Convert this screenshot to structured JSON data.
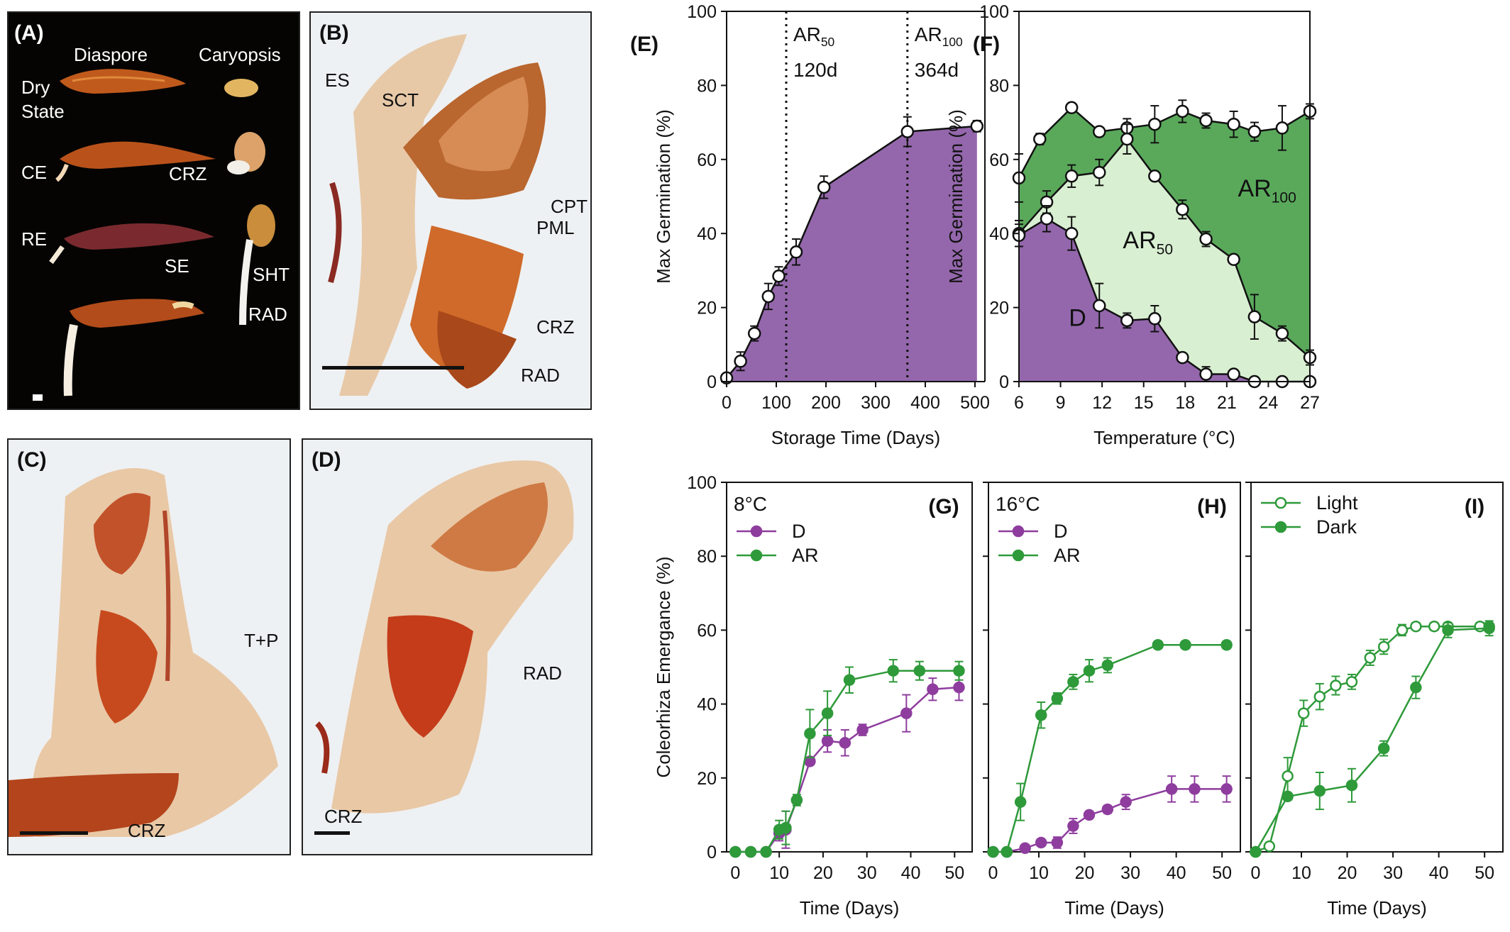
{
  "photo_panels": {
    "A": {
      "label": "(A)",
      "col_headers": [
        "Diaspore",
        "Caryopsis"
      ],
      "state_label_line1": "Dry",
      "state_label_line2": "State",
      "markers": [
        "CE",
        "CRZ",
        "RE",
        "SE",
        "SHT",
        "RAD"
      ]
    },
    "B": {
      "label": "(B)",
      "markers": [
        "ES",
        "SCT",
        "CPT",
        "PML",
        "CRZ",
        "RAD"
      ]
    },
    "C": {
      "label": "(C)",
      "markers": [
        "T+P",
        "CRZ"
      ]
    },
    "D": {
      "label": "(D)",
      "markers": [
        "RAD",
        "CRZ"
      ]
    }
  },
  "colors": {
    "purple_fill": "#9467ac",
    "dark_green_fill": "#5aa95b",
    "light_green_fill": "#d9efd2",
    "purple_line": "#8e3d9e",
    "green_line": "#2e9a3a"
  },
  "chart_data": [
    {
      "panel": "(E)",
      "type": "area",
      "xlabel": "Storage Time (Days)",
      "ylabel": "Max Germination (%)",
      "xlim": [
        0,
        520
      ],
      "ylim": [
        0,
        100
      ],
      "xticks": [
        "0",
        "100",
        "200",
        "300",
        "400",
        "500"
      ],
      "yticks": [
        "0",
        "20",
        "40",
        "60",
        "80",
        "100"
      ],
      "vlines": [
        {
          "x": 120,
          "label_main": "AR",
          "label_sub": "50",
          "label_value": "120d"
        },
        {
          "x": 364,
          "label_main": "AR",
          "label_sub": "100",
          "label_value": "364d"
        }
      ],
      "series": [
        {
          "x": [
            0,
            28,
            56,
            84,
            105,
            140,
            196,
            364,
            504
          ],
          "y": [
            1,
            5.5,
            13,
            23,
            28.5,
            35,
            52.5,
            67.5,
            69
          ],
          "err": [
            1,
            2.5,
            2,
            3.5,
            2.5,
            3.5,
            3,
            4,
            1.5
          ]
        }
      ]
    },
    {
      "panel": "(F)",
      "type": "area",
      "xlabel": "Temperature (°C)",
      "ylabel": "Max Germination (%)",
      "xlim": [
        6,
        27
      ],
      "ylim": [
        0,
        100
      ],
      "xticks": [
        "6",
        "9",
        "12",
        "15",
        "18",
        "21",
        "24",
        "27"
      ],
      "yticks": [
        "0",
        "20",
        "40",
        "60",
        "80",
        "100"
      ],
      "region_labels": {
        "top_main": "AR",
        "top_sub": "100",
        "mid_main": "AR",
        "mid_sub": "50",
        "bottom": "D"
      },
      "series": [
        {
          "role": "AR100",
          "x": [
            6,
            7.5,
            9.8,
            11.8,
            13.8,
            15.8,
            17.8,
            19.5,
            21.5,
            23,
            25,
            27
          ],
          "y": [
            55,
            65.5,
            74,
            67.5,
            68.5,
            69.5,
            73,
            70.5,
            69.5,
            67.5,
            68.5,
            73
          ],
          "err": [
            6.5,
            1.5,
            1,
            1,
            2.5,
            5,
            3,
            2,
            3.5,
            2.5,
            6,
            2
          ]
        },
        {
          "role": "AR50",
          "x": [
            6,
            8,
            9.8,
            11.8,
            13.8,
            15.8,
            17.8,
            19.5,
            21.5,
            23,
            25,
            27
          ],
          "y": [
            40,
            48.5,
            55.5,
            56.5,
            65.5,
            55.5,
            46.5,
            38.5,
            33,
            17.5,
            13,
            6.5
          ],
          "err": [
            3.5,
            3,
            3,
            3.5,
            4,
            1,
            2.5,
            2,
            1,
            6,
            2,
            2
          ]
        },
        {
          "role": "D",
          "x": [
            6,
            8,
            9.8,
            11.8,
            13.8,
            15.8,
            17.8,
            19.5,
            21.5,
            23,
            25,
            27
          ],
          "y": [
            39.5,
            44,
            40,
            20.5,
            16.5,
            17,
            6.5,
            2,
            2,
            0,
            0,
            0
          ],
          "err": [
            3,
            3.5,
            4.5,
            6,
            2,
            3.5,
            1,
            2,
            1,
            0,
            0,
            0
          ]
        }
      ]
    },
    {
      "panel": "(G)",
      "type": "line",
      "title": "8°C",
      "xlabel": "Time (Days)",
      "ylabel": "Coleorhiza Emergance (%)",
      "xlim": [
        -2,
        54
      ],
      "ylim": [
        0,
        100
      ],
      "xticks": [
        "0",
        "10",
        "20",
        "30",
        "40",
        "50"
      ],
      "yticks": [
        "0",
        "20",
        "40",
        "60",
        "80",
        "100"
      ],
      "legend": "top-left",
      "series": [
        {
          "name": "D",
          "x": [
            0,
            3.5,
            7,
            10,
            11.5,
            14,
            17,
            21,
            25,
            29,
            39,
            45,
            51
          ],
          "y": [
            0,
            0,
            0,
            5,
            6,
            14,
            24.5,
            30,
            29.5,
            33,
            37.5,
            44,
            44.5
          ],
          "err": [
            0,
            0,
            0,
            2,
            5,
            1,
            1,
            3,
            3.5,
            1.5,
            5,
            3,
            3.5
          ]
        },
        {
          "name": "AR",
          "x": [
            0,
            3.5,
            7,
            10,
            11.5,
            14,
            17,
            21,
            26,
            36,
            42,
            51
          ],
          "y": [
            0,
            0,
            0,
            6,
            6.5,
            14,
            32,
            37.5,
            46.5,
            49,
            49,
            49
          ],
          "err": [
            0,
            0,
            0,
            2.5,
            4.5,
            1.5,
            6.5,
            6,
            3.5,
            3,
            2.5,
            2.5
          ]
        }
      ]
    },
    {
      "panel": "(H)",
      "type": "line",
      "title": "16°C",
      "xlabel": "Time (Days)",
      "xlim": [
        -1,
        54
      ],
      "ylim": [
        0,
        100
      ],
      "xticks": [
        "0",
        "10",
        "20",
        "30",
        "40",
        "50"
      ],
      "legend": "top-left",
      "series": [
        {
          "name": "D",
          "x": [
            0,
            3,
            7,
            10.5,
            14,
            17.5,
            21,
            25,
            29,
            39,
            44,
            51
          ],
          "y": [
            0,
            0,
            1,
            2.5,
            2.5,
            7,
            10,
            11.5,
            13.5,
            17,
            17,
            17
          ],
          "err": [
            0,
            0,
            0.5,
            0.5,
            1.5,
            2,
            1,
            1,
            2,
            3.5,
            3.5,
            3.5
          ]
        },
        {
          "name": "AR",
          "x": [
            0,
            3,
            6,
            10.5,
            14,
            17.5,
            21,
            25,
            36,
            42,
            51
          ],
          "y": [
            0,
            0,
            13.5,
            37,
            41.5,
            46,
            49,
            50.5,
            56,
            56,
            56
          ],
          "err": [
            0,
            0,
            5,
            3.5,
            1.5,
            2,
            3,
            2,
            1,
            1,
            1
          ]
        }
      ]
    },
    {
      "panel": "(I)",
      "type": "line",
      "xlabel": "Time (Days)",
      "xlim": [
        -1,
        54
      ],
      "ylim": [
        0,
        100
      ],
      "xticks": [
        "0",
        "10",
        "20",
        "30",
        "40",
        "50"
      ],
      "legend": "top-left",
      "series": [
        {
          "name": "Light",
          "marker": "open",
          "x": [
            0,
            3,
            7,
            10.5,
            14,
            17.5,
            21,
            25,
            28,
            32,
            35,
            39,
            42,
            49,
            51
          ],
          "y": [
            0,
            1.5,
            20.5,
            37.5,
            42,
            45,
            46,
            52.5,
            55.5,
            60,
            61,
            61,
            61,
            61,
            61
          ],
          "err": [
            0,
            0,
            5,
            3.5,
            3.5,
            2.5,
            2,
            2,
            2,
            1.5,
            1,
            1,
            1,
            1,
            1
          ]
        },
        {
          "name": "Dark",
          "marker": "filled",
          "x": [
            0,
            7,
            14,
            21,
            28,
            35,
            42,
            51
          ],
          "y": [
            0,
            15,
            16.5,
            18,
            28,
            44.5,
            60,
            60.5
          ],
          "err": [
            0,
            1,
            5,
            4.5,
            2,
            3,
            2,
            2
          ]
        }
      ]
    }
  ]
}
